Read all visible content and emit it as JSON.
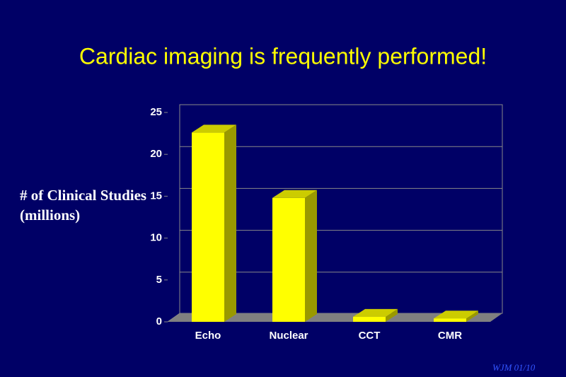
{
  "chart_data": {
    "type": "bar",
    "title": "Cardiac imaging is frequently performed!",
    "y_label": "# of Clinical Studies (millions)",
    "categories": [
      "Echo",
      "Nuclear",
      "CCT",
      "CMR"
    ],
    "values": [
      22.6,
      14.8,
      0.6,
      0.4
    ],
    "color": "#ffff00",
    "ylim": [
      0,
      25
    ],
    "yticks": [
      0,
      5,
      10,
      15,
      20,
      25
    ],
    "grid": true
  },
  "footer": "WJM 01/10"
}
